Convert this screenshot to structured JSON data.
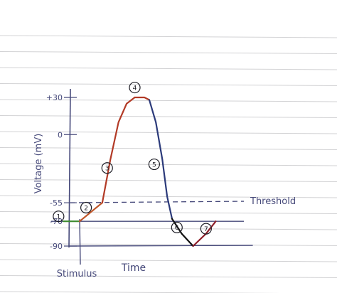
{
  "chart_data": {
    "type": "line",
    "title": "",
    "xlabel": "Time",
    "ylabel": "Voltage (mV)",
    "y_ticks": [
      {
        "value": 30,
        "label": "+30"
      },
      {
        "value": 0,
        "label": "0"
      },
      {
        "value": -55,
        "label": "-55"
      },
      {
        "value": -70,
        "label": "-70"
      },
      {
        "value": -90,
        "label": "-90"
      }
    ],
    "ylim": [
      -90,
      30
    ],
    "xlim": [
      0,
      100
    ],
    "stimulus": {
      "x": 0,
      "label": "Stimulus"
    },
    "threshold": {
      "value": -55,
      "label": "Threshold"
    },
    "resting_line": {
      "value": -70
    },
    "baseline": {
      "value": -90
    },
    "segments": [
      {
        "label": "1",
        "color": "#3d8a2e",
        "points": [
          [
            -10,
            -70
          ],
          [
            0,
            -70
          ]
        ]
      },
      {
        "label": "2",
        "color": "#c0572a",
        "points": [
          [
            0,
            -70
          ],
          [
            14,
            -55
          ]
        ]
      },
      {
        "label": "3",
        "color": "#b23a26",
        "points": [
          [
            14,
            -55
          ],
          [
            19,
            -20
          ],
          [
            24,
            10
          ],
          [
            29,
            25
          ],
          [
            34,
            30
          ]
        ]
      },
      {
        "label": "4",
        "color": "#b23a26",
        "points": [
          [
            34,
            30
          ],
          [
            40,
            30
          ],
          [
            43,
            28
          ]
        ]
      },
      {
        "label": "5",
        "color": "#2b3a7a",
        "points": [
          [
            43,
            28
          ],
          [
            47,
            10
          ],
          [
            51,
            -20
          ],
          [
            54,
            -50
          ],
          [
            57,
            -68
          ]
        ]
      },
      {
        "label": "6",
        "color": "#111111",
        "points": [
          [
            57,
            -68
          ],
          [
            63,
            -80
          ],
          [
            70,
            -90
          ]
        ]
      },
      {
        "label": "7",
        "color": "#8e1f2a",
        "points": [
          [
            70,
            -90
          ],
          [
            78,
            -80
          ],
          [
            84,
            -70
          ]
        ]
      }
    ],
    "grid": false,
    "legend": "none"
  }
}
